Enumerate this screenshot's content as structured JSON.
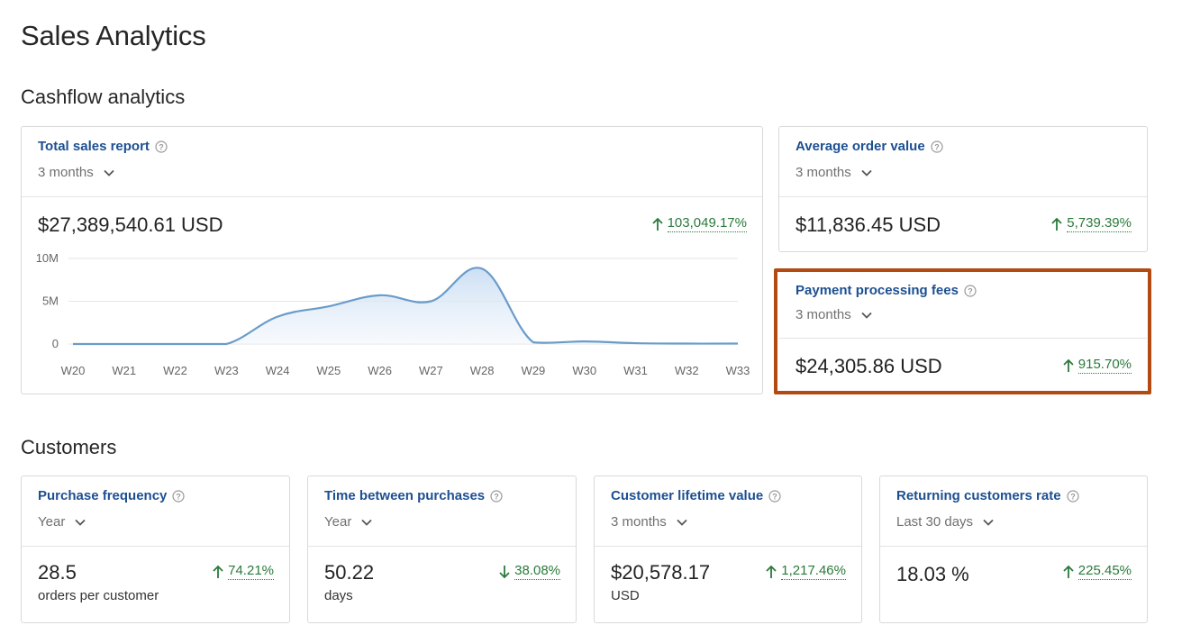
{
  "page_title": "Sales Analytics",
  "sections": {
    "cashflow": "Cashflow analytics",
    "customers": "Customers"
  },
  "total_sales": {
    "title": "Total sales report",
    "range": "3 months",
    "value": "$27,389,540.61 USD",
    "delta": "103,049.17%",
    "delta_direction": "up"
  },
  "avg_order": {
    "title": "Average order value",
    "range": "3 months",
    "value": "$11,836.45 USD",
    "delta": "5,739.39%",
    "delta_direction": "up"
  },
  "payment_fees": {
    "title": "Payment processing fees",
    "range": "3 months",
    "value": "$24,305.86 USD",
    "delta": "915.70%",
    "delta_direction": "up"
  },
  "purchase_frequency": {
    "title": "Purchase frequency",
    "range": "Year",
    "value": "28.5",
    "unit": "orders per customer",
    "delta": "74.21%",
    "delta_direction": "up"
  },
  "time_between": {
    "title": "Time between purchases",
    "range": "Year",
    "value": "50.22",
    "unit": "days",
    "delta": "38.08%",
    "delta_direction": "down"
  },
  "lifetime_value": {
    "title": "Customer lifetime value",
    "range": "3 months",
    "value": "$20,578.17",
    "unit": "USD",
    "delta": "1,217.46%",
    "delta_direction": "up"
  },
  "returning_rate": {
    "title": "Returning customers rate",
    "range": "Last 30 days",
    "value": "18.03 %",
    "delta": "225.45%",
    "delta_direction": "up"
  },
  "colors": {
    "title_blue": "#1d4f91",
    "positive_green": "#2a7a3b",
    "line_blue": "#6a9cc9",
    "highlight_border": "#b34a14"
  },
  "chart_data": {
    "type": "area",
    "x": [
      "W20",
      "W21",
      "W22",
      "W23",
      "W24",
      "W25",
      "W26",
      "W27",
      "W28",
      "W29",
      "W30",
      "W31",
      "W32",
      "W33"
    ],
    "values": [
      0,
      0,
      0,
      0,
      3200000,
      4400000,
      5700000,
      5000000,
      8800000,
      200000,
      300000,
      100000,
      50000,
      50000
    ],
    "y_ticks": [
      "0",
      "5M",
      "10M"
    ],
    "ylim": [
      0,
      10000000
    ],
    "grid": true
  }
}
